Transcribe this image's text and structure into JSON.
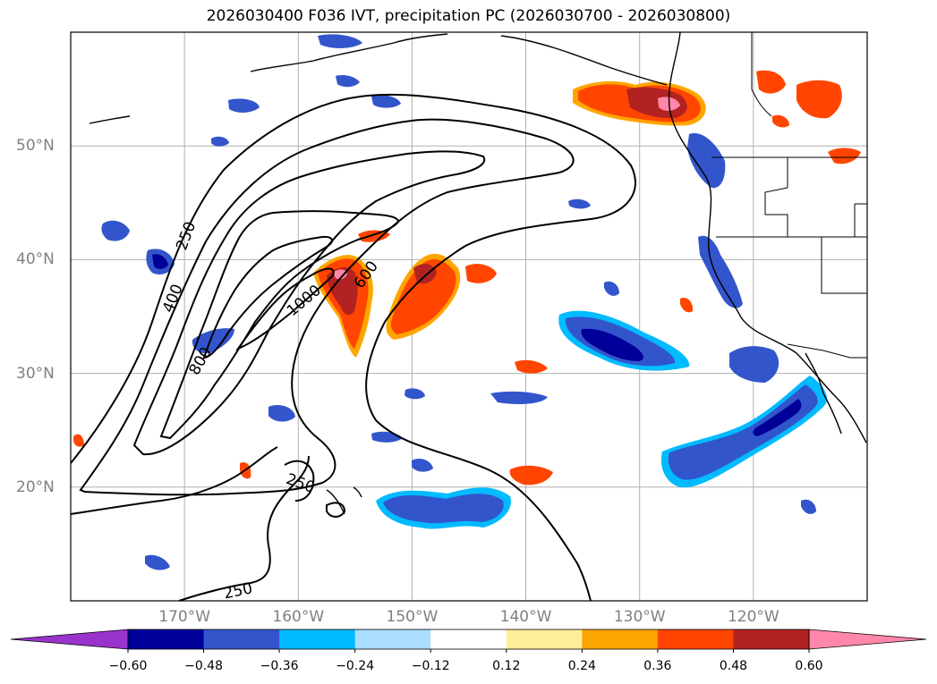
{
  "title": "2026030400 F036 IVT, precipitation PC (2026030700 - 2026030800)",
  "map": {
    "lon_range": [
      -180,
      -110
    ],
    "lat_range": [
      10,
      60
    ],
    "lon_ticks": [
      {
        "value": -170,
        "label": "170°W"
      },
      {
        "value": -160,
        "label": "160°W"
      },
      {
        "value": -150,
        "label": "150°W"
      },
      {
        "value": -140,
        "label": "140°W"
      },
      {
        "value": -130,
        "label": "130°W"
      },
      {
        "value": -120,
        "label": "120°W"
      }
    ],
    "lat_ticks": [
      {
        "value": 50,
        "label": "50°N"
      },
      {
        "value": 40,
        "label": "40°N"
      },
      {
        "value": 30,
        "label": "30°N"
      },
      {
        "value": 20,
        "label": "20°N"
      }
    ],
    "grid": true,
    "ivt_contour_labels": [
      "250",
      "400",
      "800",
      "1000",
      "600",
      "250",
      "250"
    ]
  },
  "colorbar": {
    "ticks": [
      "−0.60",
      "−0.48",
      "−0.36",
      "−0.24",
      "−0.12",
      "0.12",
      "0.24",
      "0.36",
      "0.48",
      "0.60"
    ],
    "colors": [
      "#9933cc",
      "#000099",
      "#3355cc",
      "#00bbff",
      "#aaddff",
      "#ffffff",
      "#ffee99",
      "#ffa500",
      "#ff4500",
      "#b22222",
      "#ff88aa"
    ],
    "extend": "both"
  }
}
